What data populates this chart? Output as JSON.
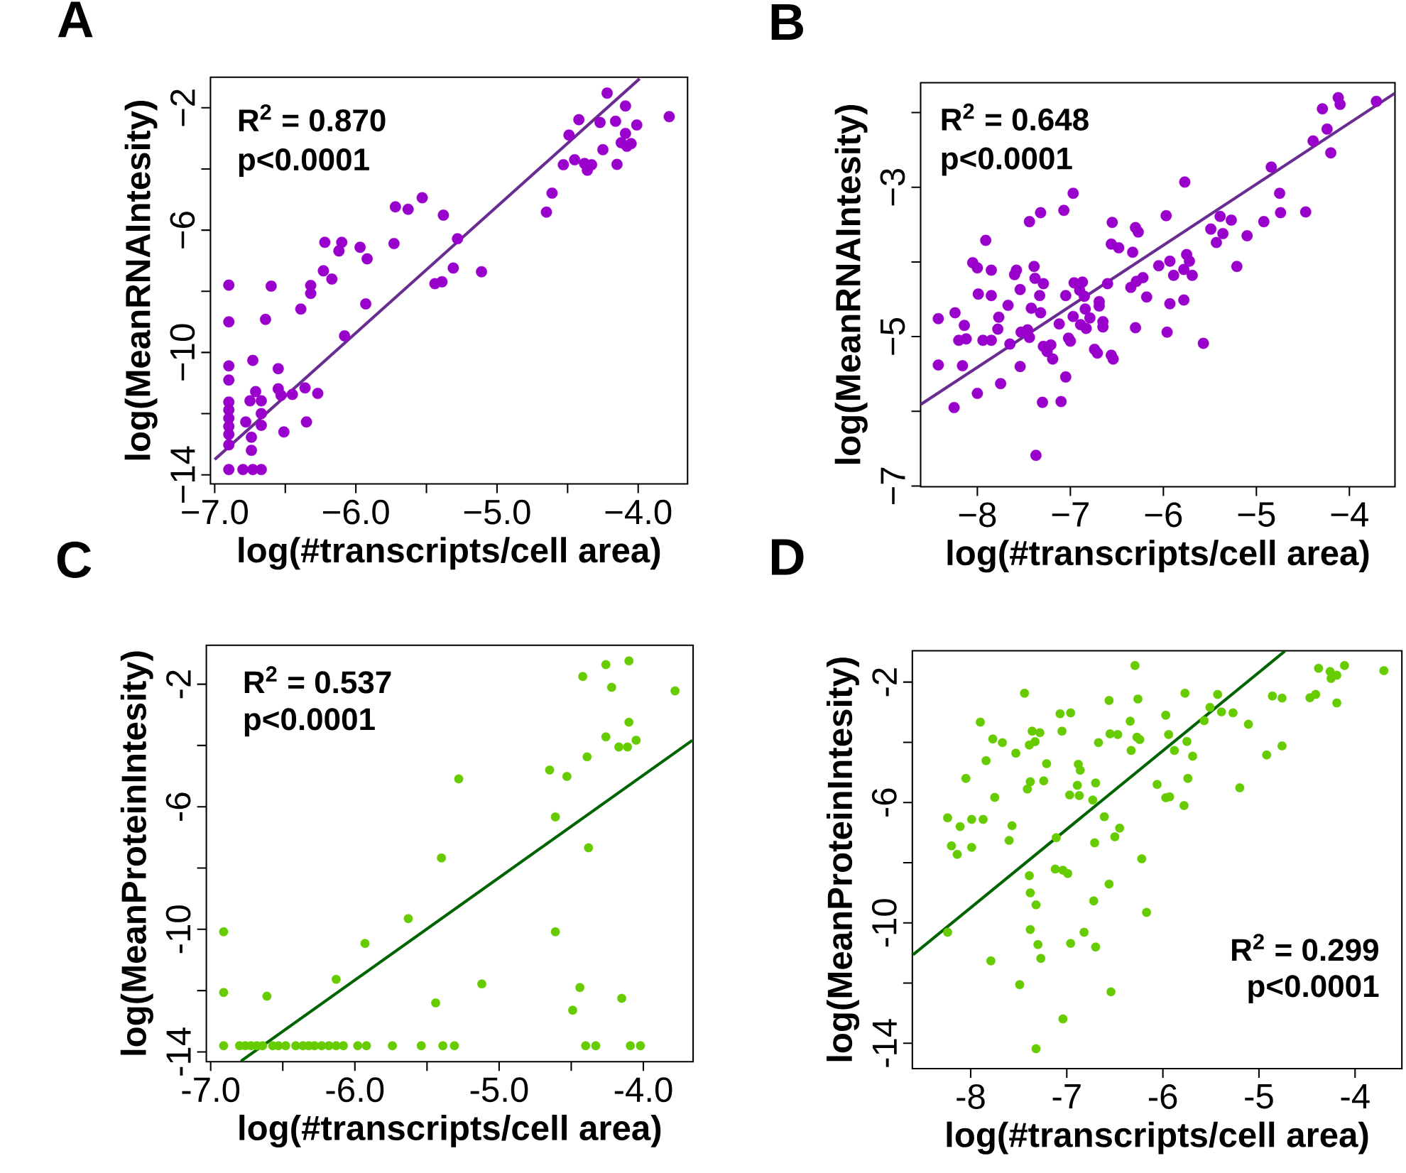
{
  "chart_data": [
    {
      "type": "scatter",
      "title": "A",
      "xlabel": "log(#transcripts/cell area)",
      "ylabel": "log(MeanRNAIntesity)",
      "annotations": [
        "R$^{2}$ = 0.870",
        "p<0.0001"
      ],
      "xlim": [
        -7.03,
        -3.65
      ],
      "ylim": [
        -14.3,
        -1.0
      ],
      "xticks": [
        {
          "value": -7,
          "label": "−7.0"
        },
        {
          "value": -6.5,
          "label": null
        },
        {
          "value": -6,
          "label": "−6.0"
        },
        {
          "value": -5.5,
          "label": null
        },
        {
          "value": -5,
          "label": "−5.0"
        },
        {
          "value": -4.5,
          "label": null
        },
        {
          "value": -4,
          "label": "−4.0"
        }
      ],
      "yticks": [
        {
          "value": -14,
          "label": "−14"
        },
        {
          "value": -12,
          "label": null
        },
        {
          "value": -10,
          "label": "−10"
        },
        {
          "value": -8,
          "label": null
        },
        {
          "value": -6,
          "label": "−6"
        },
        {
          "value": -4,
          "label": null
        },
        {
          "value": -2,
          "label": "−2"
        }
      ],
      "series": [
        {
          "marker": "circle",
          "color": "#9900cc",
          "x": [
            -4.22,
            -4.09,
            -3.78,
            -4.42,
            -4.27,
            -4.16,
            -4.01,
            -4.49,
            -4.09,
            -4.12,
            -4.05,
            -4.08,
            -4.25,
            -4.45,
            -4.53,
            -4.38,
            -4.33,
            -4.36,
            -4.15,
            -4.61,
            -4.65,
            -5.53,
            -5.72,
            -5.63,
            -5.38,
            -5.73,
            -5.28,
            -6.22,
            -6.1,
            -6.12,
            -5.97,
            -5.92,
            -6.23,
            -6.17,
            -6.32,
            -6.32,
            -6.6,
            -6.9,
            -6.39,
            -5.93,
            -6.64,
            -6.9,
            -6.08,
            -5.31,
            -5.11,
            -5.44,
            -5.39,
            -6.9,
            -6.73,
            -6.55,
            -6.9,
            -6.55,
            -6.45,
            -6.36,
            -6.27,
            -6.71,
            -6.75,
            -6.67,
            -6.9,
            -6.9,
            -6.9,
            -6.9,
            -6.9,
            -6.9,
            -6.78,
            -6.67,
            -6.67,
            -6.51,
            -6.35,
            -6.74,
            -6.74,
            -6.9,
            -6.8,
            -6.73,
            -6.67,
            -6.53
          ],
          "values": [
            -1.52,
            -1.94,
            -2.29,
            -2.39,
            -2.48,
            -2.44,
            -2.56,
            -2.89,
            -2.84,
            -3.14,
            -3.17,
            -3.26,
            -3.37,
            -3.7,
            -3.86,
            -3.82,
            -3.86,
            -4.04,
            -3.85,
            -4.79,
            -5.41,
            -4.94,
            -5.24,
            -5.32,
            -5.51,
            -6.44,
            -6.28,
            -6.4,
            -6.4,
            -6.68,
            -6.56,
            -6.94,
            -7.33,
            -7.6,
            -7.81,
            -8.07,
            -7.83,
            -7.8,
            -8.58,
            -8.41,
            -8.92,
            -9.0,
            -9.46,
            -7.24,
            -7.36,
            -7.75,
            -7.69,
            -10.44,
            -10.26,
            -10.53,
            -10.9,
            -11.19,
            -11.37,
            -11.16,
            -11.34,
            -11.28,
            -11.58,
            -11.58,
            -11.62,
            -11.88,
            -12.15,
            -12.42,
            -12.68,
            -13.02,
            -12.27,
            -12.0,
            -12.38,
            -12.6,
            -12.27,
            -12.77,
            -13.2,
            -13.83,
            -13.83,
            -13.83,
            -13.83,
            -11.4
          ]
        },
        {
          "type": "line",
          "color": "#6a2c91",
          "x": [
            -7.0,
            -3.99
          ],
          "values": [
            -13.5,
            -1.05
          ]
        }
      ]
    },
    {
      "type": "scatter",
      "title": "B",
      "xlabel": "log(#transcripts/cell area)",
      "ylabel": "log(MeanRNAIntesity)",
      "annotations": [
        "R$^{2}$ = 0.648",
        "p<0.0001"
      ],
      "xlim": [
        -8.61,
        -3.51
      ],
      "ylim": [
        -7.01,
        -1.6
      ],
      "xticks": [
        {
          "value": -8,
          "label": "−8"
        },
        {
          "value": -7,
          "label": "−7"
        },
        {
          "value": -6,
          "label": "−6"
        },
        {
          "value": -5,
          "label": "−5"
        },
        {
          "value": -4,
          "label": "−4"
        }
      ],
      "yticks": [
        {
          "value": -7,
          "label": "−7"
        },
        {
          "value": -6,
          "label": null
        },
        {
          "value": -5,
          "label": "−5"
        },
        {
          "value": -4,
          "label": null
        },
        {
          "value": -3,
          "label": "−3"
        },
        {
          "value": -2,
          "label": null
        }
      ],
      "series": [
        {
          "marker": "circle",
          "color": "#9900cc",
          "x": [
            -4.12,
            -4.1,
            -4.29,
            -3.71,
            -4.24,
            -4.39,
            -4.2,
            -4.84,
            -5.77,
            -4.75,
            -6.97,
            -7.07,
            -7.32,
            -7.44,
            -4.74,
            -4.47,
            -4.92,
            -5.27,
            -5.39,
            -5.49,
            -5.36,
            -5.43,
            -5.1,
            -5.21,
            -5.97,
            -6.55,
            -6.3,
            -6.27,
            -6.56,
            -6.48,
            -6.33,
            -7.91,
            -8.05,
            -8.0,
            -7.85,
            -7.58,
            -7.6,
            -7.39,
            -7.38,
            -7.29,
            -7.54,
            -7.33,
            -7.99,
            -7.85,
            -7.67,
            -6.96,
            -6.87,
            -6.9,
            -6.85,
            -7.05,
            -6.6,
            -6.69,
            -6.69,
            -6.84,
            -6.97,
            -6.79,
            -6.65,
            -6.89,
            -6.83,
            -6.65,
            -7.12,
            -7.42,
            -7.32,
            -7.77,
            -7.78,
            -8.24,
            -8.14,
            -8.42,
            -8.2,
            -8.12,
            -7.94,
            -7.85,
            -7.65,
            -7.53,
            -7.46,
            -7.44,
            -7.29,
            -7.21,
            -7.25,
            -7.19,
            -7.02,
            -7.0,
            -6.74,
            -6.71,
            -6.56,
            -6.54,
            -6.3,
            -6.29,
            -6.22,
            -6.35,
            -6.18,
            -5.96,
            -5.93,
            -5.78,
            -6.05,
            -5.93,
            -5.89,
            -5.75,
            -5.72,
            -5.78,
            -5.69,
            -5.57,
            -8.42,
            -8.16,
            -7.54,
            -7.75,
            -8.0,
            -8.25,
            -7.05,
            -7.3,
            -7.1,
            -7.37
          ],
          "values": [
            -1.8,
            -1.89,
            -1.95,
            -1.85,
            -2.22,
            -2.38,
            -2.54,
            -2.73,
            -2.93,
            -3.08,
            -3.08,
            -3.31,
            -3.34,
            -3.46,
            -3.34,
            -3.33,
            -3.46,
            -3.44,
            -3.39,
            -3.56,
            -3.62,
            -3.74,
            -3.65,
            -4.06,
            -3.38,
            -3.47,
            -3.54,
            -3.6,
            -3.76,
            -3.81,
            -3.87,
            -3.71,
            -4.01,
            -4.08,
            -4.11,
            -4.11,
            -4.17,
            -4.06,
            -4.22,
            -4.29,
            -4.37,
            -4.45,
            -4.43,
            -4.45,
            -4.58,
            -4.28,
            -4.27,
            -4.38,
            -4.46,
            -4.45,
            -4.29,
            -4.53,
            -4.59,
            -4.63,
            -4.73,
            -4.75,
            -4.8,
            -4.84,
            -4.89,
            -4.87,
            -4.83,
            -4.62,
            -4.68,
            -4.74,
            -4.9,
            -4.68,
            -4.85,
            -4.76,
            -5.05,
            -5.03,
            -5.05,
            -5.05,
            -5.1,
            -4.94,
            -4.91,
            -5.01,
            -5.13,
            -5.11,
            -5.2,
            -5.3,
            -5.02,
            -5.06,
            -5.17,
            -5.22,
            -5.25,
            -5.3,
            -4.88,
            -4.26,
            -4.21,
            -4.34,
            -4.47,
            -4.94,
            -4.56,
            -4.51,
            -4.05,
            -3.99,
            -4.18,
            -3.9,
            -3.99,
            -4.1,
            -4.18,
            -5.09,
            -5.38,
            -5.39,
            -5.4,
            -5.63,
            -5.76,
            -5.95,
            -5.54,
            -5.88,
            -5.87,
            -6.59
          ]
        },
        {
          "type": "line",
          "color": "#6a2c91",
          "x": [
            -8.61,
            -3.51
          ],
          "values": [
            -5.91,
            -1.74
          ]
        }
      ]
    },
    {
      "type": "scatter",
      "title": "C",
      "xlabel": "log(#transcripts/cell area)",
      "ylabel": "log(MeanProteinIntesity)",
      "annotations": [
        "R$^{2}$ = 0.537",
        "p<0.0001"
      ],
      "xlim": [
        -7.03,
        -3.655
      ],
      "ylim": [
        -14.32,
        -0.73
      ],
      "xticks": [
        {
          "value": -7,
          "label": "-7.0"
        },
        {
          "value": -6.5,
          "label": null
        },
        {
          "value": -6,
          "label": "-6.0"
        },
        {
          "value": -5.5,
          "label": null
        },
        {
          "value": -5,
          "label": "-5.0"
        },
        {
          "value": -4.5,
          "label": null
        },
        {
          "value": -4,
          "label": "-4.0"
        }
      ],
      "yticks": [
        -14,
        {
          "value": -12,
          "label": null
        },
        -10,
        {
          "value": -8,
          "label": null
        },
        -6,
        {
          "value": -4,
          "label": null
        },
        -2
      ],
      "series": [
        {
          "marker": "circle",
          "color": "#66cc00",
          "x": [
            -4.1,
            -4.26,
            -3.78,
            -4.42,
            -4.22,
            -4.1,
            -4.26,
            -4.17,
            -4.11,
            -4.05,
            -4.39,
            -4.65,
            -4.53,
            -5.28,
            -4.61,
            -4.38,
            -5.4,
            -5.63,
            -5.93,
            -6.91,
            -4.61,
            -6.13,
            -5.12,
            -6.91,
            -6.61,
            -4.44,
            -5.44,
            -4.49,
            -4.15,
            -6.91,
            -6.8,
            -6.76,
            -6.72,
            -6.68,
            -6.64,
            -6.57,
            -6.53,
            -6.48,
            -6.41,
            -6.36,
            -6.32,
            -6.28,
            -6.23,
            -6.18,
            -6.13,
            -6.08,
            -5.98,
            -5.92,
            -5.74,
            -5.54,
            -5.39,
            -5.31,
            -4.4,
            -4.33,
            -4.09,
            -4.02
          ],
          "values": [
            -1.24,
            -1.36,
            -2.22,
            -1.75,
            -2.1,
            -3.24,
            -3.72,
            -4.05,
            -4.05,
            -3.83,
            -4.37,
            -4.8,
            -5.01,
            -5.09,
            -6.33,
            -7.34,
            -7.67,
            -9.65,
            -10.46,
            -10.08,
            -10.08,
            -11.63,
            -11.78,
            -12.06,
            -12.18,
            -11.9,
            -12.4,
            -12.64,
            -12.25,
            -13.8,
            -13.8,
            -13.8,
            -13.8,
            -13.8,
            -13.8,
            -13.8,
            -13.8,
            -13.8,
            -13.8,
            -13.8,
            -13.8,
            -13.8,
            -13.8,
            -13.8,
            -13.8,
            -13.8,
            -13.8,
            -13.8,
            -13.8,
            -13.8,
            -13.8,
            -13.8,
            -13.8,
            -13.8,
            -13.8,
            -13.8
          ]
        },
        {
          "type": "line",
          "color": "#006400",
          "x": [
            -6.79,
            -3.66
          ],
          "values": [
            -14.3,
            -3.83
          ]
        }
      ]
    },
    {
      "type": "scatter",
      "title": "D",
      "xlabel": "log(#transcripts/cell area)",
      "ylabel": "log(MeanProteinIntesity)",
      "annotations": [
        "R$^{2}$ = 0.299",
        "p<0.0001"
      ],
      "xlim": [
        -8.607,
        -3.513
      ],
      "ylim": [
        -14.84,
        -0.96
      ],
      "xticks": [
        -8,
        -7,
        -6,
        -5,
        -4
      ],
      "yticks": [
        -14,
        {
          "value": -12,
          "label": null
        },
        -10,
        {
          "value": -8,
          "label": null
        },
        -6,
        {
          "value": -4,
          "label": null
        },
        -2
      ],
      "series": [
        {
          "marker": "circle",
          "color": "#66cc00",
          "x": [
            -6.29,
            -3.7,
            -4.11,
            -4.38,
            -4.26,
            -4.19,
            -4.25,
            -7.44,
            -6.56,
            -6.26,
            -5.77,
            -5.43,
            -4.86,
            -4.76,
            -4.47,
            -4.41,
            -4.19,
            -5.51,
            -5.39,
            -5.27,
            -5.57,
            -5.11,
            -7.07,
            -6.96,
            -7.9,
            -7.05,
            -6.34,
            -5.97,
            -5.94,
            -6.55,
            -6.47,
            -6.27,
            -6.24,
            -5.75,
            -5.88,
            -5.69,
            -6.33,
            -6.67,
            -7.36,
            -7.28,
            -7.39,
            -7.33,
            -7.77,
            -7.67,
            -7.53,
            -7.84,
            -8.05,
            -7.75,
            -7.21,
            -7.24,
            -7.38,
            -7.41,
            -6.88,
            -6.86,
            -6.89,
            -6.97,
            -6.87,
            -6.73,
            -6.7,
            -6.06,
            -5.74,
            -5.97,
            -5.93,
            -5.78,
            -5.2,
            -4.92,
            -4.76,
            -6.61,
            -6.45,
            -6.5,
            -7.11,
            -6.71,
            -7.57,
            -7.6,
            -8.24,
            -8.11,
            -7.99,
            -7.87,
            -8.2,
            -8.14,
            -7.99,
            -6.22,
            -7.12,
            -7.04,
            -6.99,
            -7.39,
            -6.56,
            -7.38,
            -7.32,
            -6.72,
            -6.17,
            -8.24,
            -7.38,
            -6.82,
            -6.96,
            -6.7,
            -7.3,
            -7.27,
            -7.79,
            -7.49,
            -6.54,
            -7.04,
            -7.32
          ],
          "values": [
            -1.45,
            -1.62,
            -1.45,
            -1.54,
            -1.65,
            -1.77,
            -1.88,
            -2.37,
            -2.61,
            -2.56,
            -2.37,
            -2.41,
            -2.46,
            -2.53,
            -2.52,
            -2.41,
            -2.69,
            -2.84,
            -2.99,
            -3.02,
            -3.28,
            -3.4,
            -3.05,
            -3.02,
            -3.33,
            -3.63,
            -3.3,
            -3.1,
            -3.74,
            -3.72,
            -3.74,
            -3.83,
            -3.91,
            -3.97,
            -4.27,
            -4.46,
            -4.27,
            -4.01,
            -3.63,
            -3.68,
            -4.09,
            -3.98,
            -3.89,
            -4.01,
            -4.36,
            -4.61,
            -5.2,
            -5.83,
            -4.71,
            -5.28,
            -5.31,
            -5.55,
            -4.73,
            -4.93,
            -5.43,
            -5.75,
            -5.77,
            -5.92,
            -5.35,
            -5.4,
            -5.2,
            -5.84,
            -5.81,
            -6.1,
            -5.51,
            -4.42,
            -4.12,
            -6.47,
            -6.85,
            -7.14,
            -7.17,
            -7.34,
            -6.77,
            -7.26,
            -6.51,
            -6.8,
            -6.56,
            -6.56,
            -7.44,
            -7.72,
            -7.49,
            -7.87,
            -8.21,
            -8.25,
            -8.36,
            -8.43,
            -8.71,
            -9.0,
            -9.4,
            -9.27,
            -9.65,
            -10.31,
            -10.22,
            -10.31,
            -10.68,
            -10.8,
            -10.72,
            -11.18,
            -11.26,
            -12.05,
            -12.29,
            -13.19,
            -14.18
          ]
        },
        {
          "type": "line",
          "color": "#006400",
          "x": [
            -8.6,
            -4.73
          ],
          "values": [
            -11.06,
            -0.97
          ]
        }
      ]
    }
  ]
}
